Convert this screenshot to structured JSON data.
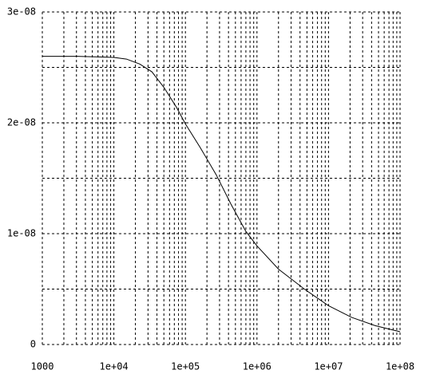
{
  "chart_data": {
    "type": "line",
    "xscale": "log",
    "grid": true,
    "color": "#000000",
    "x": [
      1000,
      3000,
      10000,
      15000,
      23000,
      34000,
      50000,
      75000,
      100000,
      160000,
      270000,
      430000,
      700000,
      1000000,
      2000000,
      4600000,
      10000000,
      21000000,
      45000000,
      100000000
    ],
    "values": [
      2.6e-08,
      2.6e-08,
      2.59e-08,
      2.575e-08,
      2.53e-08,
      2.46e-08,
      2.32e-08,
      2.14e-08,
      1.99e-08,
      1.78e-08,
      1.53e-08,
      1.27e-08,
      1.02e-08,
      8.9e-09,
      6.8e-09,
      5e-09,
      3.5e-09,
      2.45e-09,
      1.7e-09,
      1.15e-09
    ],
    "xlim": [
      1000,
      100000000
    ],
    "ylim": [
      0,
      3e-08
    ],
    "xticks": [
      1000,
      {
        "value": 10000,
        "label": "1e+04"
      },
      {
        "value": 100000,
        "label": "1e+05"
      },
      {
        "value": 1000000,
        "label": "1e+06"
      },
      {
        "value": 10000000,
        "label": "1e+07"
      },
      {
        "value": 100000000,
        "label": "1e+08"
      }
    ],
    "yticks": [
      0,
      {
        "value": 1e-08,
        "label": "1e-08"
      },
      {
        "value": 2e-08,
        "label": "2e-08"
      },
      {
        "value": 3e-08,
        "label": "3e-08"
      }
    ],
    "x_minor_grid": [
      2000,
      3000,
      4000,
      5000,
      6000,
      7000,
      8000,
      9000,
      20000,
      30000,
      40000,
      50000,
      60000,
      70000,
      80000,
      90000,
      200000,
      300000,
      400000,
      500000,
      600000,
      700000,
      800000,
      900000,
      2000000,
      3000000,
      4000000,
      5000000,
      6000000,
      7000000,
      8000000,
      9000000,
      20000000,
      30000000,
      40000000,
      50000000,
      60000000,
      70000000,
      80000000,
      90000000
    ],
    "y_minor_grid": [
      5e-09,
      1.5e-08,
      2.5e-08
    ]
  }
}
